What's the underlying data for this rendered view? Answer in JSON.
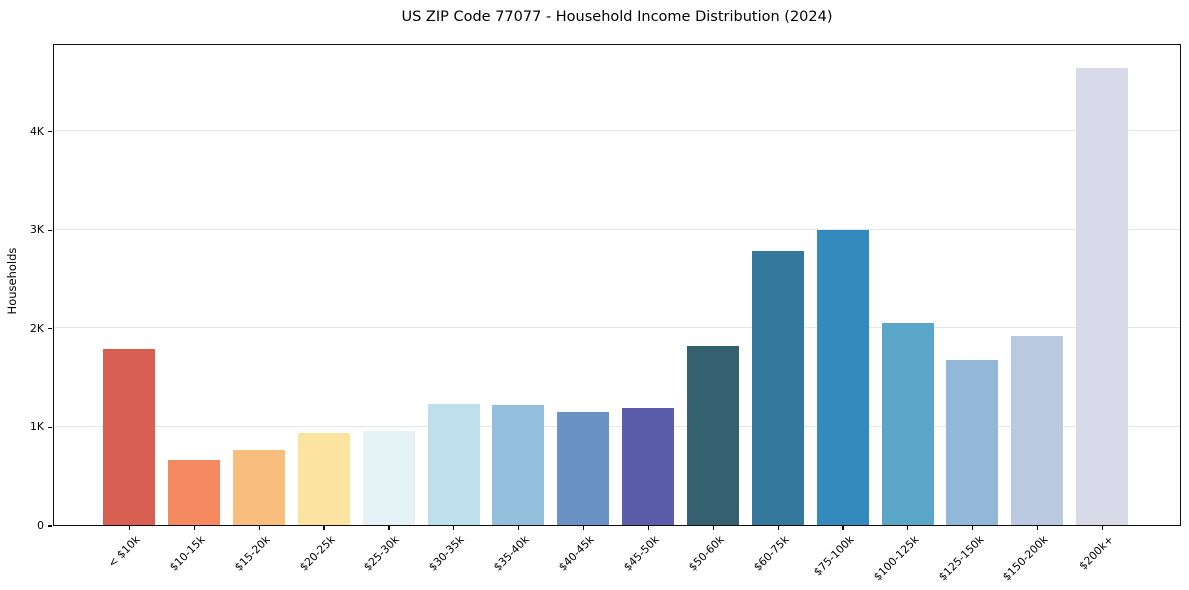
{
  "chart_data": {
    "type": "bar",
    "title": "US ZIP Code 77077 - Household Income Distribution (2024)",
    "xlabel": "",
    "ylabel": "Households",
    "categories": [
      "< $10k",
      "$10-15k",
      "$15-20k",
      "$20-25k",
      "$25-30k",
      "$30-35k",
      "$35-40k",
      "$40-45k",
      "$45-50k",
      "$50-60k",
      "$60-75k",
      "$75-100k",
      "$100-125k",
      "$125-150k",
      "$150-200k",
      "$200k+"
    ],
    "values": [
      1790,
      655,
      765,
      930,
      950,
      1225,
      1215,
      1150,
      1190,
      1815,
      2775,
      2990,
      2050,
      1675,
      1915,
      4640
    ],
    "bar_colors": [
      "#d65f51",
      "#f5895f",
      "#f9bd7e",
      "#fde3a0",
      "#e5f2f6",
      "#bee0ec",
      "#93bfdd",
      "#6b92c4",
      "#5c5daa",
      "#35606f",
      "#34799d",
      "#348abc",
      "#5ba5c9",
      "#93b7d8",
      "#b9c9df",
      "#d8d9e9"
    ],
    "ylim": [
      0,
      4890
    ],
    "yticks": {
      "values": [
        0,
        1000,
        2000,
        3000,
        4000
      ],
      "labels": [
        "0",
        "1K",
        "2K",
        "3K",
        "4K"
      ]
    },
    "grid": "horizontal",
    "legend": "none"
  }
}
